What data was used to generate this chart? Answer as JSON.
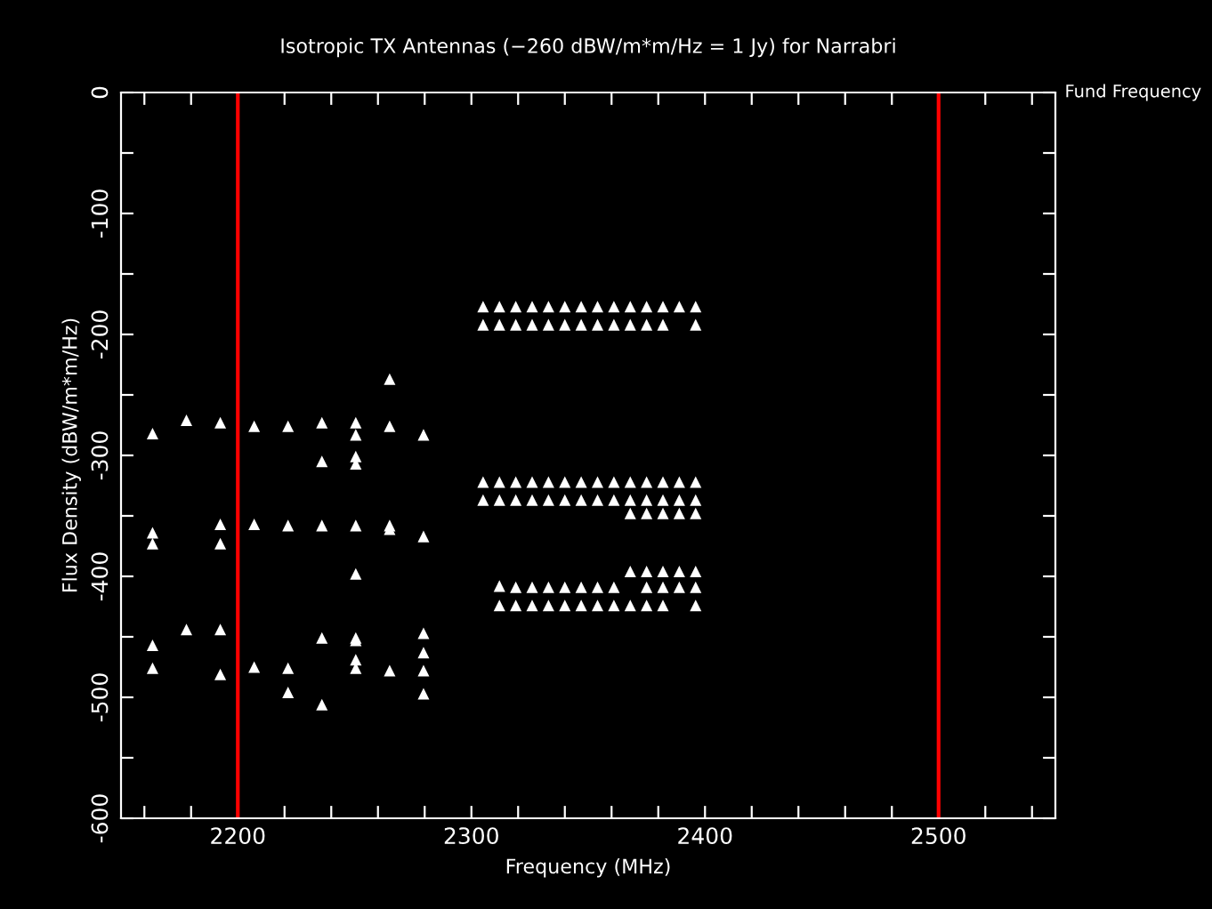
{
  "chart_data": {
    "type": "scatter",
    "title": "Isotropic TX Antennas (−260 dBW/m*m/Hz = 1 Jy) for Narrabri",
    "xlabel": "Frequency (MHz)",
    "ylabel": "Flux Density (dBW/m*m/Hz)",
    "xlim": [
      2150,
      2550
    ],
    "ylim": [
      -600,
      0
    ],
    "xticks": [
      {
        "value": 2160,
        "label": null
      },
      {
        "value": 2180,
        "label": null
      },
      2200,
      {
        "value": 2220,
        "label": null
      },
      {
        "value": 2240,
        "label": null
      },
      {
        "value": 2260,
        "label": null
      },
      {
        "value": 2280,
        "label": null
      },
      2300,
      {
        "value": 2320,
        "label": null
      },
      {
        "value": 2340,
        "label": null
      },
      {
        "value": 2360,
        "label": null
      },
      {
        "value": 2380,
        "label": null
      },
      2400,
      {
        "value": 2420,
        "label": null
      },
      {
        "value": 2440,
        "label": null
      },
      {
        "value": 2460,
        "label": null
      },
      {
        "value": 2480,
        "label": null
      },
      2500,
      {
        "value": 2520,
        "label": null
      },
      {
        "value": 2540,
        "label": null
      }
    ],
    "yticks": [
      -600,
      {
        "value": -550,
        "label": null
      },
      -500,
      {
        "value": -450,
        "label": null
      },
      -400,
      {
        "value": -350,
        "label": null
      },
      -300,
      {
        "value": -250,
        "label": null
      },
      -200,
      {
        "value": -150,
        "label": null
      },
      -100,
      {
        "value": -50,
        "label": null
      },
      0
    ],
    "grid": false,
    "legend": false,
    "marker": "triangle",
    "ref_lines": [
      {
        "axis": "x",
        "value": 2200,
        "color": "#ff0000"
      },
      {
        "axis": "x",
        "value": 2500,
        "color": "#ff0000"
      }
    ],
    "annotations": [
      "Fund Frequency"
    ],
    "series": [
      {
        "color": "#ffffff",
        "x": [
          2163.5,
          2163.5,
          2163.5,
          2163.5,
          2163.5,
          2178,
          2178,
          2192.5,
          2192.5,
          2192.5,
          2192.5,
          2192.5,
          2207,
          2207,
          2207,
          2221.5,
          2221.5,
          2221.5,
          2221.5,
          2236,
          2236,
          2236,
          2236,
          2236,
          2250.5,
          2250.5,
          2250.5,
          2250.5,
          2250.5,
          2250.5,
          2250.5,
          2250.5,
          2250.5,
          2250.5,
          2265,
          2265,
          2265,
          2265,
          2265,
          2279.5,
          2279.5,
          2279.5,
          2279.5,
          2279.5,
          2279.5,
          2305,
          2312,
          2319,
          2326,
          2333,
          2340,
          2347,
          2354,
          2361,
          2368,
          2375,
          2382,
          2389,
          2396,
          2305,
          2312,
          2319,
          2326,
          2333,
          2340,
          2347,
          2354,
          2361,
          2368,
          2375,
          2382,
          2396,
          2305,
          2312,
          2319,
          2326,
          2333,
          2340,
          2347,
          2354,
          2361,
          2368,
          2375,
          2382,
          2389,
          2396,
          2305,
          2312,
          2319,
          2326,
          2333,
          2340,
          2347,
          2354,
          2361,
          2368,
          2375,
          2382,
          2389,
          2396,
          2368,
          2375,
          2382,
          2389,
          2396,
          2368,
          2375,
          2382,
          2389,
          2396,
          2312,
          2319,
          2326,
          2333,
          2340,
          2347,
          2354,
          2361,
          2375,
          2382,
          2389,
          2396,
          2312,
          2319,
          2326,
          2333,
          2340,
          2347,
          2354,
          2361,
          2368,
          2375,
          2382,
          2396
        ],
        "values": [
          -282,
          -364,
          -373,
          -457,
          -476,
          -271,
          -444,
          -273,
          -357,
          -373,
          -444,
          -481,
          -276,
          -357,
          -475,
          -276,
          -358,
          -476,
          -496,
          -273,
          -305,
          -358,
          -451,
          -506,
          -273,
          -283,
          -301,
          -307,
          -358,
          -398,
          -451,
          -453,
          -469,
          -476,
          -237,
          -276,
          -358,
          -361,
          -478,
          -283,
          -367,
          -447,
          -463,
          -478,
          -497,
          -177,
          -177,
          -177,
          -177,
          -177,
          -177,
          -177,
          -177,
          -177,
          -177,
          -177,
          -177,
          -177,
          -177,
          -192,
          -192,
          -192,
          -192,
          -192,
          -192,
          -192,
          -192,
          -192,
          -192,
          -192,
          -192,
          -192,
          -322,
          -322,
          -322,
          -322,
          -322,
          -322,
          -322,
          -322,
          -322,
          -322,
          -322,
          -322,
          -322,
          -322,
          -337,
          -337,
          -337,
          -337,
          -337,
          -337,
          -337,
          -337,
          -337,
          -337,
          -337,
          -337,
          -337,
          -337,
          -348,
          -348,
          -348,
          -348,
          -348,
          -396,
          -396,
          -396,
          -396,
          -396,
          -408,
          -409,
          -409,
          -409,
          -409,
          -409,
          -409,
          -409,
          -409,
          -409,
          -409,
          -409,
          -424,
          -424,
          -424,
          -424,
          -424,
          -424,
          -424,
          -424,
          -424,
          -424,
          -424,
          -424
        ]
      }
    ]
  }
}
